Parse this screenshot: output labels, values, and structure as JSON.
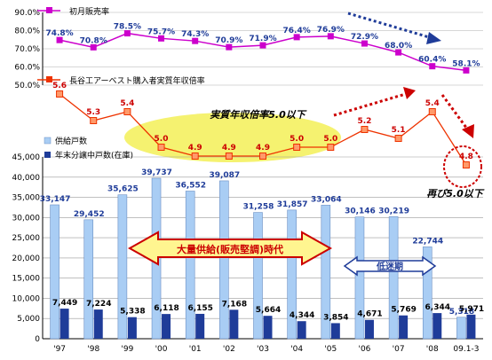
{
  "chart_data": {
    "type": "bar",
    "categories": [
      "'97",
      "'98",
      "'99",
      "'00",
      "'01",
      "'02",
      "'03",
      "'04",
      "'05",
      "'06",
      "'07",
      "'08",
      "09.1-3"
    ],
    "series": [
      {
        "name": "供給戸数",
        "type": "bar",
        "color": "#a9cdf4",
        "values": [
          33147,
          29452,
          35625,
          39737,
          36552,
          39087,
          31258,
          31857,
          33064,
          30146,
          30219,
          22744,
          5318
        ],
        "labels": [
          "33,147",
          "29,452",
          "35,625",
          "39,737",
          "36,552",
          "39,087",
          "31,258",
          "31,857",
          "33,064",
          "30,146",
          "30,219",
          "22,744",
          "5,318"
        ]
      },
      {
        "name": "年末分譲中戸数(在庫)",
        "type": "bar",
        "color": "#1f3c99",
        "values": [
          7449,
          7224,
          5338,
          6118,
          6155,
          7168,
          5664,
          4344,
          3854,
          4671,
          5769,
          6344,
          5971
        ],
        "labels": [
          "7,449",
          "7,224",
          "5,338",
          "6,118",
          "6,155",
          "7,168",
          "5,664",
          "4,344",
          "3,854",
          "4,671",
          "5,769",
          "6,344",
          "5,971"
        ]
      },
      {
        "name": "初月販売率",
        "type": "line",
        "color": "#cc00cc",
        "values": [
          74.8,
          70.8,
          78.5,
          75.7,
          74.3,
          70.9,
          71.9,
          76.4,
          76.9,
          72.9,
          68.0,
          60.4,
          58.1
        ],
        "labels": [
          "74.8%",
          "70.8%",
          "78.5%",
          "75.7%",
          "74.3%",
          "70.9%",
          "71.9%",
          "76.4%",
          "76.9%",
          "72.9%",
          "68.0%",
          "60.4%",
          "58.1%"
        ]
      },
      {
        "name": "長谷工アーベスト購入者実質年収倍率",
        "type": "line",
        "color": "#ee3300",
        "values": [
          5.6,
          5.3,
          5.4,
          5.0,
          4.9,
          4.9,
          4.9,
          5.0,
          5.0,
          5.2,
          5.1,
          5.4,
          4.8
        ],
        "labels": [
          "5.6",
          "5.3",
          "5.4",
          "5.0",
          "4.9",
          "4.9",
          "4.9",
          "5.0",
          "5.0",
          "5.2",
          "5.1",
          "5.4",
          "4.8"
        ]
      }
    ],
    "y_bar": {
      "ticks": [
        "0",
        "5,000",
        "10,000",
        "15,000",
        "20,000",
        "25,000",
        "30,000",
        "35,000",
        "40,000",
        "45,000"
      ],
      "ylim": [
        0,
        45000
      ]
    },
    "y_rate": {
      "ticks": [
        "50.0%",
        "60.0%",
        "70.0%",
        "80.0%",
        "90.0%"
      ],
      "ylim": [
        50,
        90
      ]
    },
    "annotations": {
      "ratio_low": "実質年収倍率5.0以下",
      "again_low": "再び5.0以下",
      "mass_supply": "大量供給(販売堅調)時代",
      "slump": "低迷期"
    },
    "colors": {
      "ellipse": "#f5f270",
      "arrow_fill": "#fff590",
      "arrow_stroke": "#cc0000",
      "dotted_blue": "#1f3c99",
      "dotted_red": "#cc0000"
    }
  }
}
